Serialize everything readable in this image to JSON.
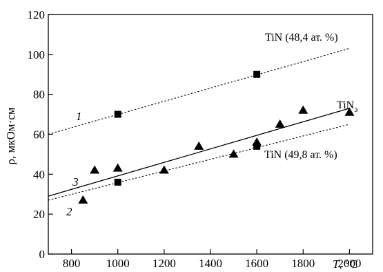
{
  "chart_data": {
    "type": "scatter",
    "xlabel_italic": "T",
    "xlabel_unit": ", °C",
    "ylabel": "ρ, мкОм·см",
    "xlim": [
      700,
      2100
    ],
    "ylim": [
      0,
      120
    ],
    "x_ticks": [
      800,
      1000,
      1200,
      1400,
      1600,
      1800,
      2000
    ],
    "y_ticks": [
      0,
      20,
      40,
      60,
      80,
      100,
      120
    ],
    "grid": false,
    "series": [
      {
        "name": "TiN (48,4 ат. %)",
        "curve_number": "1",
        "marker": "square",
        "points": [
          [
            1000,
            70
          ],
          [
            1600,
            90
          ]
        ],
        "fit": [
          [
            700,
            60
          ],
          [
            2000,
            103
          ]
        ],
        "line_style": "dotted"
      },
      {
        "name": "TiN (49,8 ат. %)",
        "curve_number": "2",
        "marker": "square",
        "points": [
          [
            1000,
            36
          ],
          [
            1600,
            54
          ]
        ],
        "fit": [
          [
            700,
            27
          ],
          [
            2000,
            65
          ]
        ],
        "line_style": "dotted"
      },
      {
        "name_base": "TiN",
        "name_sub": "э",
        "curve_number": "3",
        "marker": "triangle",
        "points": [
          [
            850,
            27
          ],
          [
            900,
            42
          ],
          [
            1000,
            43
          ],
          [
            1200,
            42
          ],
          [
            1350,
            54
          ],
          [
            1500,
            50
          ],
          [
            1600,
            56
          ],
          [
            1700,
            65
          ],
          [
            1800,
            72
          ],
          [
            2000,
            71
          ]
        ],
        "fit": [
          [
            700,
            29
          ],
          [
            2000,
            73
          ]
        ],
        "line_style": "solid"
      }
    ]
  }
}
